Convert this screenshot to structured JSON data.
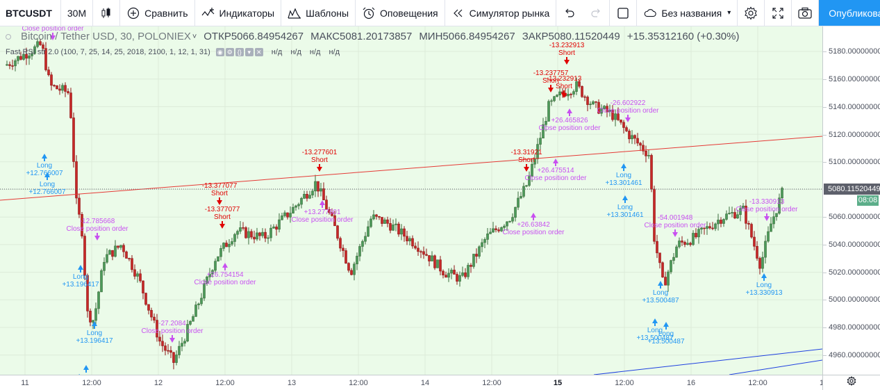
{
  "toolbar": {
    "symbol": "BTCUSDT",
    "interval": "30M",
    "compare_label": "Сравнить",
    "indicators_label": "Индикаторы",
    "templates_label": "Шаблоны",
    "alerts_label": "Оповещения",
    "replay_label": "Симулятор рынка",
    "layout_name": "Без названия",
    "publish_label": "Опубликовать"
  },
  "legend": {
    "symbol_text": "Bitcoin / Tether USD, 30, POLONIEX",
    "open": "ОТКР5066.84954267",
    "high": "МАКС5081.20173857",
    "low": "МИН5066.84954267",
    "close": "ЗАКР5080.11520449",
    "change": "+15.35312160 (+0.30%)"
  },
  "indicator": {
    "name": "Fast RSI str 2.0 (100, 7, 25, 14, 25, 2018, 2100, 1, 12, 1, 31)",
    "values": [
      "н/д",
      "н/д",
      "н/д",
      "н/д"
    ]
  },
  "price_scale": {
    "labels": [
      "5180.00000000",
      "5160.00000000",
      "5140.00000000",
      "5120.00000000",
      "5100.00000000",
      "5080.11520449",
      "5060.00000000",
      "5040.00000000",
      "5020.00000000",
      "5000.00000000",
      "4980.00000000",
      "4960.00000000"
    ],
    "last_price": "5080.11520449",
    "countdown": "08:08"
  },
  "time_scale": {
    "labels": [
      "11",
      "12:00",
      "12",
      "12:00",
      "13",
      "12:00",
      "14",
      "12:00",
      "15",
      "12:00",
      "16",
      "12:00",
      "1"
    ]
  },
  "colors": {
    "chart_bg": "#ebfbe9",
    "candle_up": "#53b987",
    "candle_down": "#eb4d5c",
    "candle_body_up": "#3d7a3d",
    "candle_body_down": "#a31b1b",
    "long_signal": "#2196f3",
    "short_signal": "#e00000",
    "close_signal": "#c850f0",
    "trend_line_red": "#e53935",
    "trend_line_blue": "#1e40e0",
    "accent": "#2196f3"
  },
  "signals": [
    {
      "type": "close",
      "label": "Close position order"
    },
    {
      "type": "long",
      "label": "Long",
      "value": "+12.766007"
    },
    {
      "type": "long",
      "label": "Long",
      "value": "+12.766007"
    },
    {
      "type": "close",
      "label": "Close position order",
      "value": "-12.785668"
    },
    {
      "type": "long",
      "label": "Long",
      "value": "+13.196417"
    },
    {
      "type": "long",
      "label": "Long",
      "value": "+13.196417"
    },
    {
      "type": "long",
      "label": "Long"
    },
    {
      "type": "close",
      "label": "Close position order",
      "value": "-27.2084"
    },
    {
      "type": "short",
      "label": "Short",
      "value": "-13.377077"
    },
    {
      "type": "short",
      "label": "Short",
      "value": "-13.377077"
    },
    {
      "type": "close",
      "label": "Close position order",
      "value": "+26.754154"
    },
    {
      "type": "short",
      "label": "Short",
      "value": "-13.277601"
    },
    {
      "type": "close",
      "label": "Close position order",
      "value": "+13.277601"
    },
    {
      "type": "short",
      "label": "Short",
      "value": "-13.31921"
    },
    {
      "type": "close",
      "label": "Close position order",
      "value": "+26.475514"
    },
    {
      "type": "close",
      "label": "Close position order",
      "value": "+26.63842"
    },
    {
      "type": "short",
      "label": "Short",
      "value": "-13.232913"
    },
    {
      "type": "short",
      "label": "Short",
      "value": "-13.237757"
    },
    {
      "type": "short",
      "label": "Short",
      "value": "-13.232913"
    },
    {
      "type": "close",
      "label": "Close position order",
      "value": "+26.465826"
    },
    {
      "type": "close",
      "label": "Close position order",
      "value": "-26.602922"
    },
    {
      "type": "long",
      "label": "Long",
      "value": "+13.301461"
    },
    {
      "type": "long",
      "label": "Long",
      "value": "+13.301461"
    },
    {
      "type": "close",
      "label": "Close position order",
      "value": "-54.001948"
    },
    {
      "type": "long",
      "label": "Long",
      "value": "+13.500487"
    },
    {
      "type": "long",
      "label": "Long",
      "value": "+13.500487"
    },
    {
      "type": "long",
      "label": "Long",
      "value": "+13.500487"
    },
    {
      "type": "close",
      "label": "Close position order",
      "value": "-13.330913"
    },
    {
      "type": "long",
      "label": "Long",
      "value": "+13.330913"
    }
  ]
}
